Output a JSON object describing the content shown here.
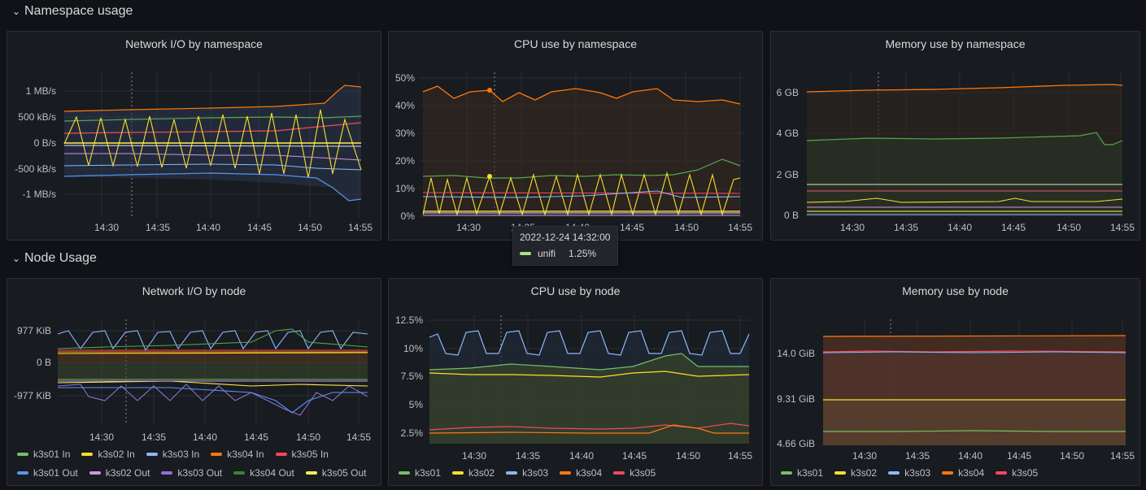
{
  "rows": {
    "namespace": "Namespace usage",
    "node": "Node Usage"
  },
  "time_ticks": [
    "14:30",
    "14:35",
    "14:40",
    "14:45",
    "14:50",
    "14:55"
  ],
  "panels": {
    "ns_net": {
      "title": "Network I/O by namespace",
      "yticks": [
        "1 MB/s",
        "500 kB/s",
        "0 B/s",
        "-500 kB/s",
        "-1 MB/s"
      ]
    },
    "ns_cpu": {
      "title": "CPU use by namespace",
      "yticks": [
        "50%",
        "40%",
        "30%",
        "20%",
        "10%",
        "0%"
      ]
    },
    "ns_mem": {
      "title": "Memory use by namespace",
      "yticks": [
        "6 GB",
        "4 GB",
        "2 GB",
        "0 B"
      ]
    },
    "node_net": {
      "title": "Network I/O by node",
      "yticks": [
        "977 KiB",
        "0 B",
        "-977 KiB"
      ],
      "legend_row1": [
        "k3s01 In",
        "k3s02 In",
        "k3s03 In",
        "k3s04 In",
        "k3s05 In"
      ],
      "legend_row2": [
        "k3s01 Out",
        "k3s02 Out",
        "k3s03 Out",
        "k3s04 Out",
        "k3s05 Out"
      ]
    },
    "node_cpu": {
      "title": "CPU use by node",
      "yticks": [
        "12.5%",
        "10%",
        "7.5%",
        "5%",
        "2.5%"
      ],
      "legend": [
        "k3s01",
        "k3s02",
        "k3s03",
        "k3s04",
        "k3s05"
      ]
    },
    "node_mem": {
      "title": "Memory use by node",
      "yticks": [
        "14.0 GiB",
        "9.31 GiB",
        "4.66 GiB"
      ],
      "legend": [
        "k3s01",
        "k3s02",
        "k3s03",
        "k3s04",
        "k3s05"
      ]
    }
  },
  "legend_colors": {
    "k3s01": "#73bf69",
    "k3s02": "#fade2a",
    "k3s03": "#8ab8ff",
    "k3s04": "#ff780a",
    "k3s05": "#f2495c",
    "k3s01_out": "#5794f2",
    "k3s02_out": "#ca95e5",
    "k3s03_out": "#8f6fd6",
    "k3s04_out": "#37872d",
    "k3s05_out": "#ffee52"
  },
  "tooltip": {
    "time": "2022-12-24 14:32:00",
    "series": "unifi",
    "value": "1.25%"
  }
}
